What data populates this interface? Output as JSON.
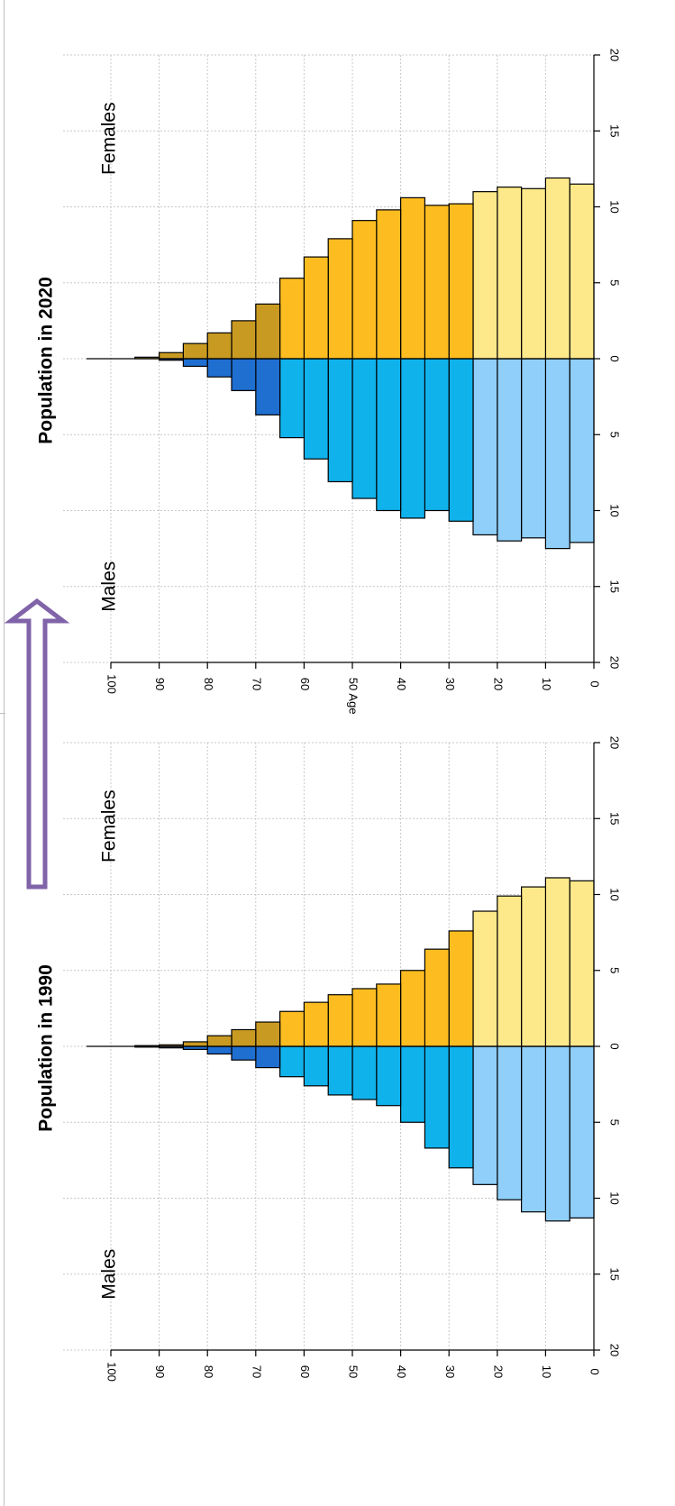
{
  "colors": {
    "male_old": "#1f6fd1",
    "male_mid": "#10b2ec",
    "male_young": "#8fcffa",
    "female_old": "#c99a22",
    "female_mid": "#fdbd21",
    "female_young": "#fde98a",
    "arrow": "#8063a8",
    "grid": "#c8c8c8"
  },
  "page": {
    "arrow_icon": "up-arrow-icon",
    "arrow_direction": "up"
  },
  "chart_data": [
    {
      "type": "bar",
      "orientation": "population-pyramid",
      "title": "Population in 1990",
      "xlabel": "",
      "ylabel": "",
      "left_label": "Males",
      "right_label": "Females",
      "age_ticks": [
        "0",
        "10",
        "20",
        "30",
        "40",
        "50",
        "60",
        "70",
        "80",
        "90",
        "100"
      ],
      "value_ticks": [
        "20",
        "15",
        "10",
        "5",
        "0",
        "5",
        "10",
        "15",
        "20"
      ],
      "xlim": [
        -20,
        20
      ],
      "ylim": [
        0,
        100
      ],
      "grid": true,
      "age_bins": [
        0,
        5,
        10,
        15,
        20,
        25,
        30,
        35,
        40,
        45,
        50,
        55,
        60,
        65,
        70,
        75,
        80,
        85,
        90,
        95
      ],
      "series": [
        {
          "name": "Males",
          "values": [
            11.3,
            11.5,
            10.9,
            10.1,
            9.1,
            8.0,
            6.7,
            5.0,
            3.9,
            3.5,
            3.2,
            2.6,
            2.0,
            1.4,
            0.9,
            0.5,
            0.2,
            0.1,
            0.05,
            0.0
          ]
        },
        {
          "name": "Females",
          "values": [
            10.9,
            11.1,
            10.5,
            9.9,
            8.9,
            7.6,
            6.4,
            5.0,
            4.1,
            3.8,
            3.4,
            2.9,
            2.3,
            1.6,
            1.1,
            0.7,
            0.3,
            0.1,
            0.05,
            0.0
          ]
        }
      ]
    },
    {
      "type": "bar",
      "orientation": "population-pyramid",
      "title": "Population in 2020",
      "xlabel": "",
      "ylabel": "Age",
      "left_label": "Males",
      "right_label": "Females",
      "age_ticks": [
        "0",
        "10",
        "20",
        "30",
        "40",
        "50",
        "60",
        "70",
        "80",
        "90",
        "100"
      ],
      "value_ticks": [
        "20",
        "15",
        "10",
        "5",
        "0",
        "5",
        "10",
        "15",
        "20"
      ],
      "xlim": [
        -20,
        20
      ],
      "ylim": [
        0,
        100
      ],
      "grid": true,
      "age_bins": [
        0,
        5,
        10,
        15,
        20,
        25,
        30,
        35,
        40,
        45,
        50,
        55,
        60,
        65,
        70,
        75,
        80,
        85,
        90,
        95
      ],
      "series": [
        {
          "name": "Males",
          "values": [
            12.1,
            12.5,
            11.8,
            12.0,
            11.6,
            10.7,
            10.0,
            10.5,
            10.0,
            9.2,
            8.1,
            6.6,
            5.2,
            3.7,
            2.1,
            1.2,
            0.5,
            0.1,
            0.0,
            0.0
          ]
        },
        {
          "name": "Females",
          "values": [
            11.5,
            11.9,
            11.2,
            11.3,
            11.0,
            10.2,
            10.1,
            10.6,
            9.8,
            9.1,
            7.9,
            6.7,
            5.3,
            3.6,
            2.5,
            1.7,
            1.0,
            0.4,
            0.1,
            0.0
          ]
        }
      ]
    }
  ]
}
